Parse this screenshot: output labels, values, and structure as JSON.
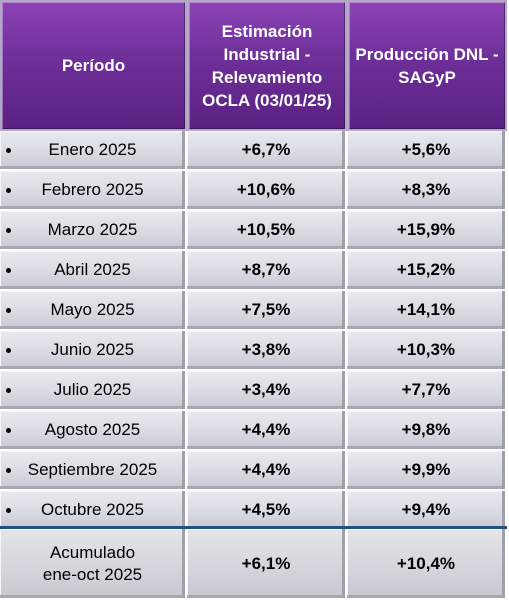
{
  "header": {
    "col1": "Período",
    "col2_lines": [
      "Estimación",
      "Industrial -",
      "Relevamiento",
      "OCLA (03/01/25)"
    ],
    "col3_lines": [
      "Producción DNL -",
      "SAGyP"
    ]
  },
  "rows": [
    {
      "period": "Enero 2025",
      "ocla": "+6,7%",
      "dnl": "+5,6%"
    },
    {
      "period": "Febrero 2025",
      "ocla": "+10,6%",
      "dnl": "+8,3%"
    },
    {
      "period": "Marzo 2025",
      "ocla": "+10,5%",
      "dnl": "+15,9%"
    },
    {
      "period": "Abril 2025",
      "ocla": "+8,7%",
      "dnl": "+15,2%"
    },
    {
      "period": "Mayo 2025",
      "ocla": "+7,5%",
      "dnl": "+14,1%"
    },
    {
      "period": "Junio 2025",
      "ocla": "+3,8%",
      "dnl": "+10,3%"
    },
    {
      "period": "Julio 2025",
      "ocla": "+3,4%",
      "dnl": "+7,7%"
    },
    {
      "period": "Agosto 2025",
      "ocla": "+4,4%",
      "dnl": "+9,8%"
    },
    {
      "period": "Septiembre 2025",
      "ocla": "+4,4%",
      "dnl": "+9,9%"
    },
    {
      "period": "Octubre 2025",
      "ocla": "+4,5%",
      "dnl": "+9,4%"
    }
  ],
  "total": {
    "label_lines": [
      "Acumulado",
      "ene-oct 2025"
    ],
    "ocla": "+6,1%",
    "dnl": "+10,4%"
  }
}
